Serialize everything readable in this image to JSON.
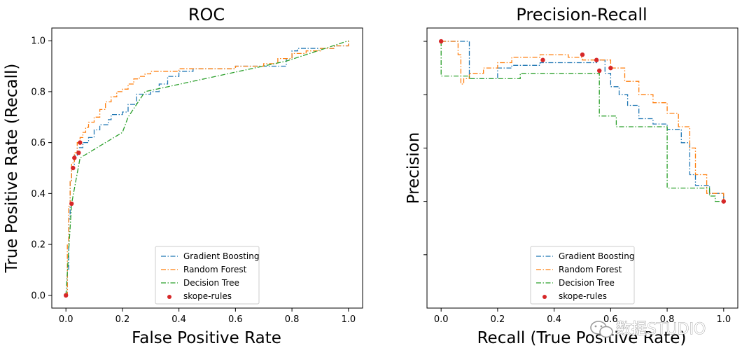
{
  "watermark": "数据STUDIO",
  "colors": {
    "gradient_boosting": "#1f77b4",
    "random_forest": "#ff7f0e",
    "decision_tree": "#2ca02c",
    "skope_rules": "#d62728"
  },
  "chart_data": [
    {
      "type": "line",
      "title": "ROC",
      "xlabel": "False Positive Rate",
      "ylabel": "True Positive Rate (Recall)",
      "xlim": [
        -0.05,
        1.05
      ],
      "ylim": [
        -0.05,
        1.05
      ],
      "xticks": [
        0.0,
        0.2,
        0.4,
        0.6,
        0.8,
        1.0
      ],
      "yticks": [
        0.0,
        0.2,
        0.4,
        0.6,
        0.8,
        1.0
      ],
      "xtick_labels": [
        "0.0",
        "0.2",
        "0.4",
        "0.6",
        "0.8",
        "1.0"
      ],
      "ytick_labels": [
        "0.0",
        "0.2",
        "0.4",
        "0.6",
        "0.8",
        "1.0"
      ],
      "show_ytick_labels": true,
      "legend_position": "lower-center",
      "legend_labels": [
        "Gradient Boosting",
        "Random Forest",
        "Decision Tree",
        "skope-rules"
      ],
      "series": [
        {
          "name": "Gradient Boosting",
          "style": "step",
          "color_key": "gradient_boosting",
          "x": [
            0.0,
            0.005,
            0.01,
            0.015,
            0.02,
            0.03,
            0.04,
            0.06,
            0.08,
            0.1,
            0.12,
            0.15,
            0.16,
            0.2,
            0.22,
            0.25,
            0.3,
            0.33,
            0.36,
            0.4,
            0.45,
            0.5,
            0.6,
            0.7,
            0.78,
            0.8,
            0.82,
            0.85,
            0.9,
            0.95,
            1.0
          ],
          "y": [
            0.0,
            0.1,
            0.3,
            0.45,
            0.5,
            0.55,
            0.58,
            0.6,
            0.62,
            0.65,
            0.67,
            0.69,
            0.71,
            0.72,
            0.75,
            0.79,
            0.8,
            0.83,
            0.86,
            0.88,
            0.89,
            0.89,
            0.9,
            0.9,
            0.93,
            0.96,
            0.97,
            0.97,
            0.97,
            0.98,
            1.0
          ]
        },
        {
          "name": "Random Forest",
          "style": "step",
          "color_key": "random_forest",
          "x": [
            0.0,
            0.005,
            0.01,
            0.015,
            0.02,
            0.03,
            0.04,
            0.05,
            0.06,
            0.07,
            0.08,
            0.1,
            0.12,
            0.14,
            0.16,
            0.18,
            0.2,
            0.22,
            0.24,
            0.26,
            0.28,
            0.3,
            0.35,
            0.4,
            0.5,
            0.6,
            0.7,
            0.75,
            0.8,
            0.85,
            0.9,
            0.95,
            1.0
          ],
          "y": [
            0.0,
            0.2,
            0.35,
            0.45,
            0.52,
            0.56,
            0.6,
            0.62,
            0.64,
            0.66,
            0.68,
            0.7,
            0.73,
            0.76,
            0.78,
            0.8,
            0.81,
            0.83,
            0.85,
            0.86,
            0.87,
            0.88,
            0.88,
            0.89,
            0.89,
            0.9,
            0.91,
            0.93,
            0.95,
            0.96,
            0.97,
            0.98,
            1.0
          ]
        },
        {
          "name": "Decision Tree",
          "style": "line",
          "color_key": "decision_tree",
          "x": [
            0.0,
            0.02,
            0.05,
            0.2,
            0.22,
            0.28,
            0.78,
            1.0
          ],
          "y": [
            0.0,
            0.36,
            0.54,
            0.64,
            0.7,
            0.8,
            0.92,
            1.0
          ]
        }
      ],
      "points": {
        "name": "skope-rules",
        "color_key": "skope_rules",
        "x": [
          0.0,
          0.02,
          0.025,
          0.03,
          0.045,
          0.05
        ],
        "y": [
          0.0,
          0.36,
          0.5,
          0.54,
          0.56,
          0.6
        ]
      }
    },
    {
      "type": "line",
      "title": "Precision-Recall",
      "xlabel": "Recall (True Positive Rate)",
      "ylabel": "Precision",
      "xlim": [
        -0.05,
        1.05
      ],
      "ylim": [
        0.0,
        1.05
      ],
      "xticks": [
        0.0,
        0.2,
        0.4,
        0.6,
        0.8,
        1.0
      ],
      "yticks": [
        0.2,
        0.4,
        0.6,
        0.8,
        1.0
      ],
      "xtick_labels": [
        "0.0",
        "0.2",
        "0.4",
        "0.6",
        "0.8",
        "1.0"
      ],
      "ytick_labels": [],
      "show_ytick_labels": false,
      "legend_position": "lower-center",
      "legend_labels": [
        "Gradient Boosting",
        "Random Forest",
        "Decision Tree",
        "skope-rules"
      ],
      "series": [
        {
          "name": "Gradient Boosting",
          "style": "step",
          "color_key": "gradient_boosting",
          "x": [
            0.0,
            0.1,
            0.1,
            0.2,
            0.25,
            0.35,
            0.45,
            0.55,
            0.58,
            0.6,
            0.63,
            0.66,
            0.7,
            0.75,
            0.8,
            0.85,
            0.88,
            0.9,
            0.95,
            1.0
          ],
          "y": [
            1.0,
            1.0,
            0.86,
            0.9,
            0.91,
            0.92,
            0.92,
            0.93,
            0.88,
            0.83,
            0.8,
            0.76,
            0.71,
            0.69,
            0.67,
            0.62,
            0.5,
            0.46,
            0.43,
            0.4
          ]
        },
        {
          "name": "Random Forest",
          "style": "step",
          "color_key": "random_forest",
          "x": [
            0.0,
            0.06,
            0.07,
            0.08,
            0.1,
            0.15,
            0.2,
            0.25,
            0.35,
            0.45,
            0.5,
            0.55,
            0.6,
            0.65,
            0.7,
            0.75,
            0.8,
            0.84,
            0.88,
            0.9,
            0.94,
            1.0
          ],
          "y": [
            1.0,
            0.95,
            0.84,
            0.86,
            0.88,
            0.9,
            0.92,
            0.94,
            0.95,
            0.94,
            0.93,
            0.93,
            0.9,
            0.85,
            0.8,
            0.77,
            0.73,
            0.68,
            0.6,
            0.5,
            0.43,
            0.4
          ]
        },
        {
          "name": "Decision Tree",
          "style": "step",
          "color_key": "decision_tree",
          "x": [
            0.0,
            0.0,
            0.1,
            0.28,
            0.3,
            0.55,
            0.56,
            0.56,
            0.62,
            0.62,
            0.8,
            0.8,
            0.95,
            0.97,
            1.0
          ],
          "y": [
            1.0,
            0.87,
            0.86,
            0.88,
            0.88,
            0.88,
            0.8,
            0.72,
            0.72,
            0.68,
            0.68,
            0.45,
            0.42,
            0.4,
            0.4
          ]
        }
      ],
      "points": {
        "name": "skope-rules",
        "color_key": "skope_rules",
        "x": [
          0.0,
          0.36,
          0.5,
          0.55,
          0.56,
          0.6,
          1.0
        ],
        "y": [
          1.0,
          0.93,
          0.95,
          0.93,
          0.89,
          0.9,
          0.4
        ]
      }
    }
  ]
}
